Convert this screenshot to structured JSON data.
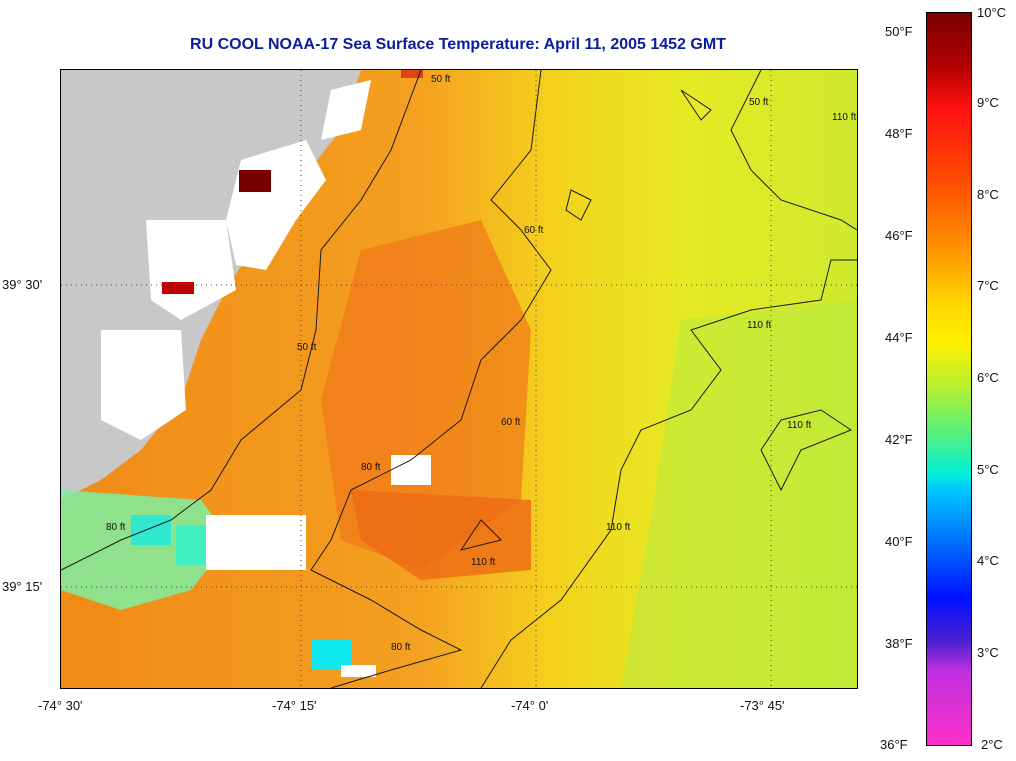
{
  "title": "RU COOL  NOAA-17  Sea Surface Temperature:  April 11, 2005 1452 GMT",
  "map": {
    "lon_ticks": [
      "-74° 30'",
      "-74° 15'",
      "-74° 0'",
      "-73° 45'"
    ],
    "lat_ticks": [
      "39° 30'",
      "39° 15'"
    ],
    "contour_labels": [
      "50 ft",
      "50 ft",
      "50 ft",
      "60 ft",
      "60 ft",
      "80 ft",
      "80 ft",
      "80 ft",
      "110 ft",
      "110 ft",
      "110 ft",
      "110 ft",
      "110 ft"
    ],
    "colors": {
      "land": "#c8c8c8",
      "cloud_or_missing": "#ffffff",
      "warm": "#f08a18",
      "mid": "#f4d21c",
      "cool": "#d8ec2a",
      "cold": "#4ff0b8"
    }
  },
  "colorbar": {
    "fahrenheit_labels": [
      "50°F",
      "48°F",
      "46°F",
      "44°F",
      "42°F",
      "40°F",
      "38°F",
      "36°F"
    ],
    "celsius_labels": [
      "10°C",
      "9°C",
      "8°C",
      "7°C",
      "6°C",
      "5°C",
      "4°C",
      "3°C",
      "2°C"
    ]
  }
}
